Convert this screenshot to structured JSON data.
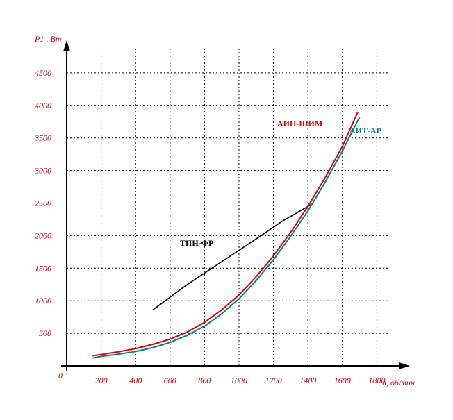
{
  "chart_data": {
    "type": "line",
    "xlabel": "n, об/мин",
    "ylabel": "P1 , Вт",
    "origin_label": "0",
    "xticks": [
      200,
      400,
      600,
      800,
      1000,
      1200,
      1400,
      1600,
      1800
    ],
    "yticks": [
      500,
      1000,
      1500,
      2000,
      2500,
      3000,
      3500,
      4000,
      4500
    ],
    "xlim": [
      0,
      1900
    ],
    "ylim": [
      0,
      4900
    ],
    "grid": true,
    "series": [
      {
        "name": "ТПН-ФР",
        "color": "#000000",
        "x": [
          500,
          700,
          900,
          1100,
          1250,
          1420
        ],
        "y": [
          860,
          1250,
          1600,
          1950,
          2220,
          2480
        ]
      },
      {
        "name": "АИТ-АР",
        "color": "#008080",
        "x": [
          150,
          200,
          300,
          400,
          500,
          600,
          700,
          800,
          900,
          1000,
          1100,
          1200,
          1300,
          1400,
          1500,
          1600,
          1700
        ],
        "y": [
          120,
          145,
          180,
          220,
          280,
          360,
          470,
          610,
          800,
          1030,
          1310,
          1630,
          1990,
          2380,
          2820,
          3300,
          3820
        ]
      },
      {
        "name": "АИН-ШИМ",
        "color": "#e00000",
        "x": [
          150,
          200,
          300,
          400,
          500,
          600,
          700,
          800,
          900,
          1000,
          1100,
          1200,
          1300,
          1400,
          1500,
          1600,
          1690
        ],
        "y": [
          155,
          175,
          215,
          265,
          330,
          410,
          520,
          670,
          860,
          1090,
          1370,
          1690,
          2050,
          2450,
          2890,
          3370,
          3900
        ]
      }
    ],
    "label_colors": {
      "ТПН-ФР": "#000000",
      "АИН-ШИМ": "#e00000",
      "АИТ-АР": "#008080"
    }
  }
}
